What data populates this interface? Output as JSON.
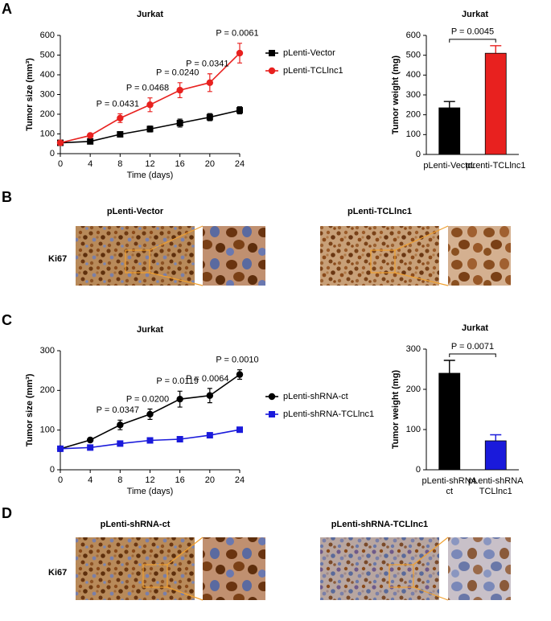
{
  "panel_labels": [
    "A",
    "B",
    "C",
    "D"
  ],
  "chart_data": [
    {
      "type": "line",
      "title": "Jurkat",
      "xlabel": "Time (days)",
      "ylabel": "Tumor size (mm³)",
      "x": [
        0,
        4,
        8,
        12,
        16,
        20,
        24
      ],
      "xlim": [
        0,
        24
      ],
      "xticks": [
        0,
        4,
        8,
        12,
        16,
        20,
        24
      ],
      "ylim": [
        0,
        600
      ],
      "yticks": [
        0,
        100,
        200,
        300,
        400,
        500,
        600
      ],
      "series": [
        {
          "name": "pLenti-Vector",
          "color": "#000000",
          "marker": "square",
          "values": [
            55,
            62,
            98,
            125,
            155,
            185,
            220
          ],
          "errors": [
            5,
            8,
            12,
            15,
            20,
            18,
            18
          ]
        },
        {
          "name": "pLenti-TCLlnc1",
          "color": "#e8211f",
          "marker": "circle",
          "values": [
            55,
            92,
            180,
            248,
            322,
            360,
            510
          ],
          "errors": [
            5,
            10,
            22,
            35,
            38,
            45,
            50
          ]
        }
      ],
      "annotations": [
        {
          "text": "P = 0.0431",
          "x": 8
        },
        {
          "text": "P = 0.0468",
          "x": 12
        },
        {
          "text": "P = 0.0240",
          "x": 16
        },
        {
          "text": "P = 0.0341",
          "x": 20
        },
        {
          "text": "P = 0.0061",
          "x": 24
        }
      ]
    },
    {
      "type": "bar",
      "title": "Jurkat",
      "ylabel": "Tumor weight (mg)",
      "categories": [
        [
          "pLenti-Vector"
        ],
        [
          "pLenti-TCLlnc1"
        ]
      ],
      "values": [
        235,
        510
      ],
      "errors": [
        32,
        38
      ],
      "colors": [
        "#000000",
        "#e8211f"
      ],
      "ylim": [
        0,
        600
      ],
      "yticks": [
        0,
        100,
        200,
        300,
        400,
        500,
        600
      ],
      "annotation": "P = 0.0045"
    },
    {
      "type": "line",
      "title": "Jurkat",
      "xlabel": "Time (days)",
      "ylabel": "Tumor size (mm³)",
      "x": [
        0,
        4,
        8,
        12,
        16,
        20,
        24
      ],
      "xlim": [
        0,
        24
      ],
      "xticks": [
        0,
        4,
        8,
        12,
        16,
        20,
        24
      ],
      "ylim": [
        0,
        300
      ],
      "yticks": [
        0,
        100,
        200,
        300
      ],
      "series": [
        {
          "name": "pLenti-shRNA-ct",
          "color": "#000000",
          "marker": "circle",
          "values": [
            53,
            75,
            113,
            140,
            178,
            187,
            240
          ],
          "errors": [
            3,
            5,
            12,
            13,
            20,
            18,
            12
          ]
        },
        {
          "name": "pLenti-shRNA-TCLlnc1",
          "color": "#1a1adb",
          "marker": "square",
          "values": [
            53,
            56,
            66,
            74,
            77,
            87,
            101
          ],
          "errors": [
            3,
            3,
            4,
            3,
            3,
            4,
            4
          ]
        }
      ],
      "annotations": [
        {
          "text": "P = 0.0347",
          "x": 8
        },
        {
          "text": "P = 0.0200",
          "x": 12
        },
        {
          "text": "P = 0.0119",
          "x": 16
        },
        {
          "text": "P = 0.0064",
          "x": 20
        },
        {
          "text": "P = 0.0010",
          "x": 24
        }
      ]
    },
    {
      "type": "bar",
      "title": "Jurkat",
      "ylabel": "Tumor weight (mg)",
      "categories": [
        [
          "pLenti-shRNA",
          "ct"
        ],
        [
          "pLenti-shRNA",
          "TCLlnc1"
        ]
      ],
      "values": [
        240,
        72
      ],
      "errors": [
        32,
        15
      ],
      "colors": [
        "#000000",
        "#1a1adb"
      ],
      "ylim": [
        0,
        300
      ],
      "yticks": [
        0,
        100,
        200,
        300
      ],
      "annotation": "P = 0.0071"
    }
  ],
  "ihc": [
    {
      "row_label": "Ki67",
      "titles": [
        "pLenti-Vector",
        "pLenti-TCLlnc1"
      ]
    },
    {
      "row_label": "Ki67",
      "titles": [
        "pLenti-shRNA-ct",
        "pLenti-shRNA-TCLlnc1"
      ]
    }
  ]
}
